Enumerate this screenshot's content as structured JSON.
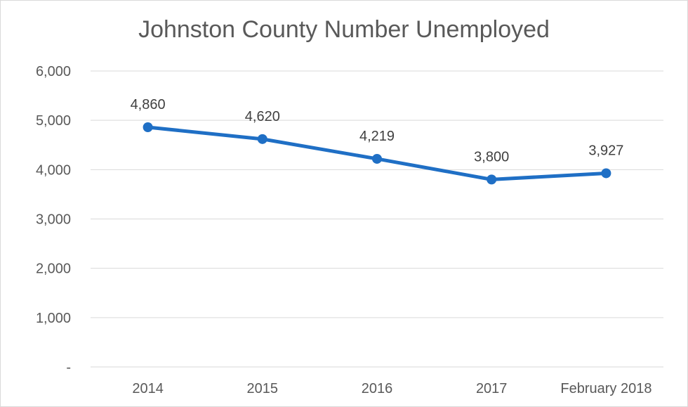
{
  "chart_data": {
    "type": "line",
    "title": "Johnston County Number Unemployed",
    "xlabel": "",
    "ylabel": "",
    "categories": [
      "2014",
      "2015",
      "2016",
      "2017",
      "February 2018"
    ],
    "series": [
      {
        "values": [
          4860,
          4620,
          4219,
          3800,
          3927
        ],
        "data_labels": [
          "4,860",
          "4,620",
          "4,219",
          "3,800",
          "3,927"
        ]
      }
    ],
    "ylim": [
      0,
      6000
    ],
    "yticks": [
      0,
      1000,
      2000,
      3000,
      4000,
      5000,
      6000
    ],
    "ytick_labels": [
      "-",
      "1,000",
      "2,000",
      "3,000",
      "4,000",
      "5,000",
      "6,000"
    ],
    "grid": true,
    "legend": "none",
    "colors": {
      "line": "#1f6fc5",
      "grid": "#d9d9d9",
      "text": "#595959"
    }
  }
}
